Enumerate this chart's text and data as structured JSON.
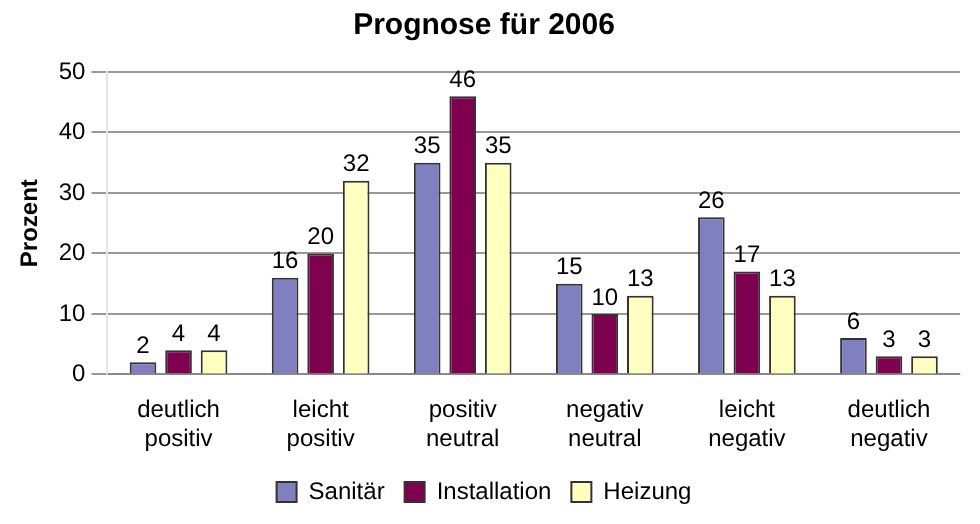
{
  "chart_data": {
    "type": "bar",
    "title": "Prognose für 2006",
    "ylabel": "Prozent",
    "categories": [
      "deutlich positiv",
      "leicht positiv",
      "positiv neutral",
      "negativ neutral",
      "leicht negativ",
      "deutlich negativ"
    ],
    "series": [
      {
        "name": "Sanitär",
        "color": "#8080c0",
        "values": [
          2,
          16,
          35,
          15,
          26,
          6
        ]
      },
      {
        "name": "Installation",
        "color": "#800050",
        "values": [
          4,
          20,
          46,
          10,
          17,
          3
        ]
      },
      {
        "name": "Heizung",
        "color": "#ffffc0",
        "values": [
          4,
          32,
          35,
          13,
          13,
          3
        ]
      }
    ],
    "ylim": [
      0,
      50
    ],
    "yticks": [
      0,
      10,
      20,
      30,
      40,
      50
    ],
    "grid": "y",
    "legend": "bottom",
    "data_labels": true
  }
}
